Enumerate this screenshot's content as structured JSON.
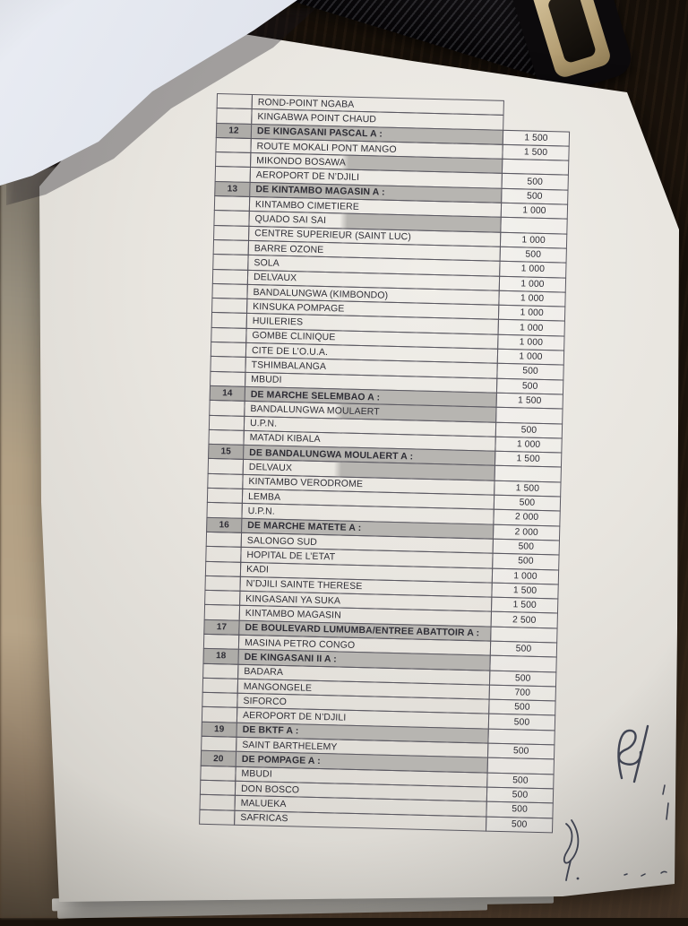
{
  "document": {
    "description": "printed fare list page (transport tariffs), sections 12-20",
    "columns": {
      "number": "",
      "destination": "",
      "fare": ""
    },
    "rows": [
      {
        "n": "",
        "t": "ROND-POINT NGABA",
        "p": "",
        "cell": false
      },
      {
        "n": "",
        "t": "KINGABWA POINT CHAUD",
        "p": "",
        "cell": false
      },
      {
        "n": "12",
        "t": "DE KINGASANI PASCAL A :",
        "p": "1 500",
        "h": true
      },
      {
        "n": "",
        "t": "ROUTE MOKALI PONT MANGO",
        "p": "1 500"
      },
      {
        "n": "",
        "t": "MIKONDO BOSAWA",
        "p": "",
        "band": true
      },
      {
        "n": "",
        "t": "AEROPORT DE N’DJILI",
        "p": "500"
      },
      {
        "n": "13",
        "t": "DE KINTAMBO MAGASIN A :",
        "p": "500",
        "h": true
      },
      {
        "n": "",
        "t": "KINTAMBO CIMETIERE",
        "p": "1 000"
      },
      {
        "n": "",
        "t": "QUADO SAI SAI",
        "p": "",
        "band": true
      },
      {
        "n": "",
        "t": "CENTRE SUPERIEUR (SAINT LUC)",
        "p": "1 000"
      },
      {
        "n": "",
        "t": "BARRE OZONE",
        "p": "500"
      },
      {
        "n": "",
        "t": "SOLA",
        "p": "1 000"
      },
      {
        "n": "",
        "t": "DELVAUX",
        "p": "1 000"
      },
      {
        "n": "",
        "t": "BANDALUNGWA (KIMBONDO)",
        "p": "1 000"
      },
      {
        "n": "",
        "t": "KINSUKA POMPAGE",
        "p": "1 000"
      },
      {
        "n": "",
        "t": "HUILERIES",
        "p": "1 000"
      },
      {
        "n": "",
        "t": "GOMBE CLINIQUE",
        "p": "1 000"
      },
      {
        "n": "",
        "t": "CITE DE L’O.U.A.",
        "p": "1 000"
      },
      {
        "n": "",
        "t": "TSHIMBALANGA",
        "p": "500"
      },
      {
        "n": "",
        "t": "MBUDI",
        "p": "500"
      },
      {
        "n": "14",
        "t": "DE MARCHE SELEMBAO A :",
        "p": "1 500",
        "h": true
      },
      {
        "n": "",
        "t": "BANDALUNGWA MOULAERT",
        "p": "",
        "band": true
      },
      {
        "n": "",
        "t": "U.P.N.",
        "p": "500"
      },
      {
        "n": "",
        "t": "MATADI KIBALA",
        "p": "1 000"
      },
      {
        "n": "15",
        "t": "DE BANDALUNGWA MOULAERT A :",
        "p": "1 500",
        "h": true
      },
      {
        "n": "",
        "t": "DELVAUX",
        "p": "",
        "band": true
      },
      {
        "n": "",
        "t": "KINTAMBO VERODROME",
        "p": "1 500"
      },
      {
        "n": "",
        "t": "LEMBA",
        "p": "500"
      },
      {
        "n": "",
        "t": "U.P.N.",
        "p": "2 000"
      },
      {
        "n": "16",
        "t": "DE MARCHE MATETE A :",
        "p": "2 000",
        "h": true
      },
      {
        "n": "",
        "t": "SALONGO SUD",
        "p": "500"
      },
      {
        "n": "",
        "t": "HOPITAL DE L’ETAT",
        "p": "500"
      },
      {
        "n": "",
        "t": "KADI",
        "p": "1 000"
      },
      {
        "n": "",
        "t": "N’DJILI SAINTE THERESE",
        "p": "1 500"
      },
      {
        "n": "",
        "t": "KINGASANI YA SUKA",
        "p": "1 500"
      },
      {
        "n": "",
        "t": "KINTAMBO MAGASIN",
        "p": "2 500"
      },
      {
        "n": "17",
        "t": "DE BOULEVARD LUMUMBA/ENTREE ABATTOIR A :",
        "p": "",
        "h": true
      },
      {
        "n": "",
        "t": "MASINA PETRO CONGO",
        "p": "500"
      },
      {
        "n": "18",
        "t": "DE KINGASANI II A :",
        "p": "",
        "h": true
      },
      {
        "n": "",
        "t": "BADARA",
        "p": "500"
      },
      {
        "n": "",
        "t": "MANGONGELE",
        "p": "700"
      },
      {
        "n": "",
        "t": "SIFORCO",
        "p": "500"
      },
      {
        "n": "",
        "t": "AEROPORT DE N’DJILI",
        "p": "500"
      },
      {
        "n": "19",
        "t": "DE BKTF A :",
        "p": "",
        "h": true
      },
      {
        "n": "",
        "t": "SAINT BARTHELEMY",
        "p": "500"
      },
      {
        "n": "20",
        "t": "DE POMPAGE A :",
        "p": "",
        "h": true
      },
      {
        "n": "",
        "t": "MBUDI",
        "p": "500"
      },
      {
        "n": "",
        "t": "DON BOSCO",
        "p": "500"
      },
      {
        "n": "",
        "t": "MALUEKA",
        "p": "500"
      },
      {
        "n": "",
        "t": "SAFRICAS",
        "p": "500"
      }
    ]
  },
  "handwriting": {
    "signature": "illegible pen initials",
    "corner_scribble": "pen loop mark",
    "edge_marks": "small pen ticks"
  },
  "colors": {
    "paper": "#e8e5df",
    "header_shading": "#b7b5b1",
    "table_border": "#5a5861",
    "ink_text": "#2e2d35",
    "pen_ink": "#434756",
    "wood_dark": "#1e150d",
    "wood_light": "#5a4530",
    "lifted_page": "#dde1ea",
    "fabric_tan": "#b3a185"
  }
}
